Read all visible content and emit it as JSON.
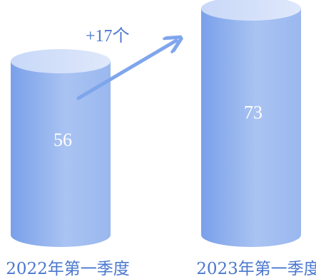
{
  "chart_data": {
    "type": "bar",
    "categories": [
      "2022年第一季度",
      "2023年第一季度"
    ],
    "values": [
      56,
      73
    ],
    "value_labels": [
      "56",
      "73"
    ],
    "annotation": "+17个",
    "title": "",
    "xlabel": "",
    "ylabel": "",
    "colors": {
      "bar_light": "#d7e3fb",
      "bar_mid": "#a9c3f2",
      "bar_dark": "#7aa0ea",
      "arrow": "#7fa6ec",
      "label": "#4a78cf"
    }
  }
}
